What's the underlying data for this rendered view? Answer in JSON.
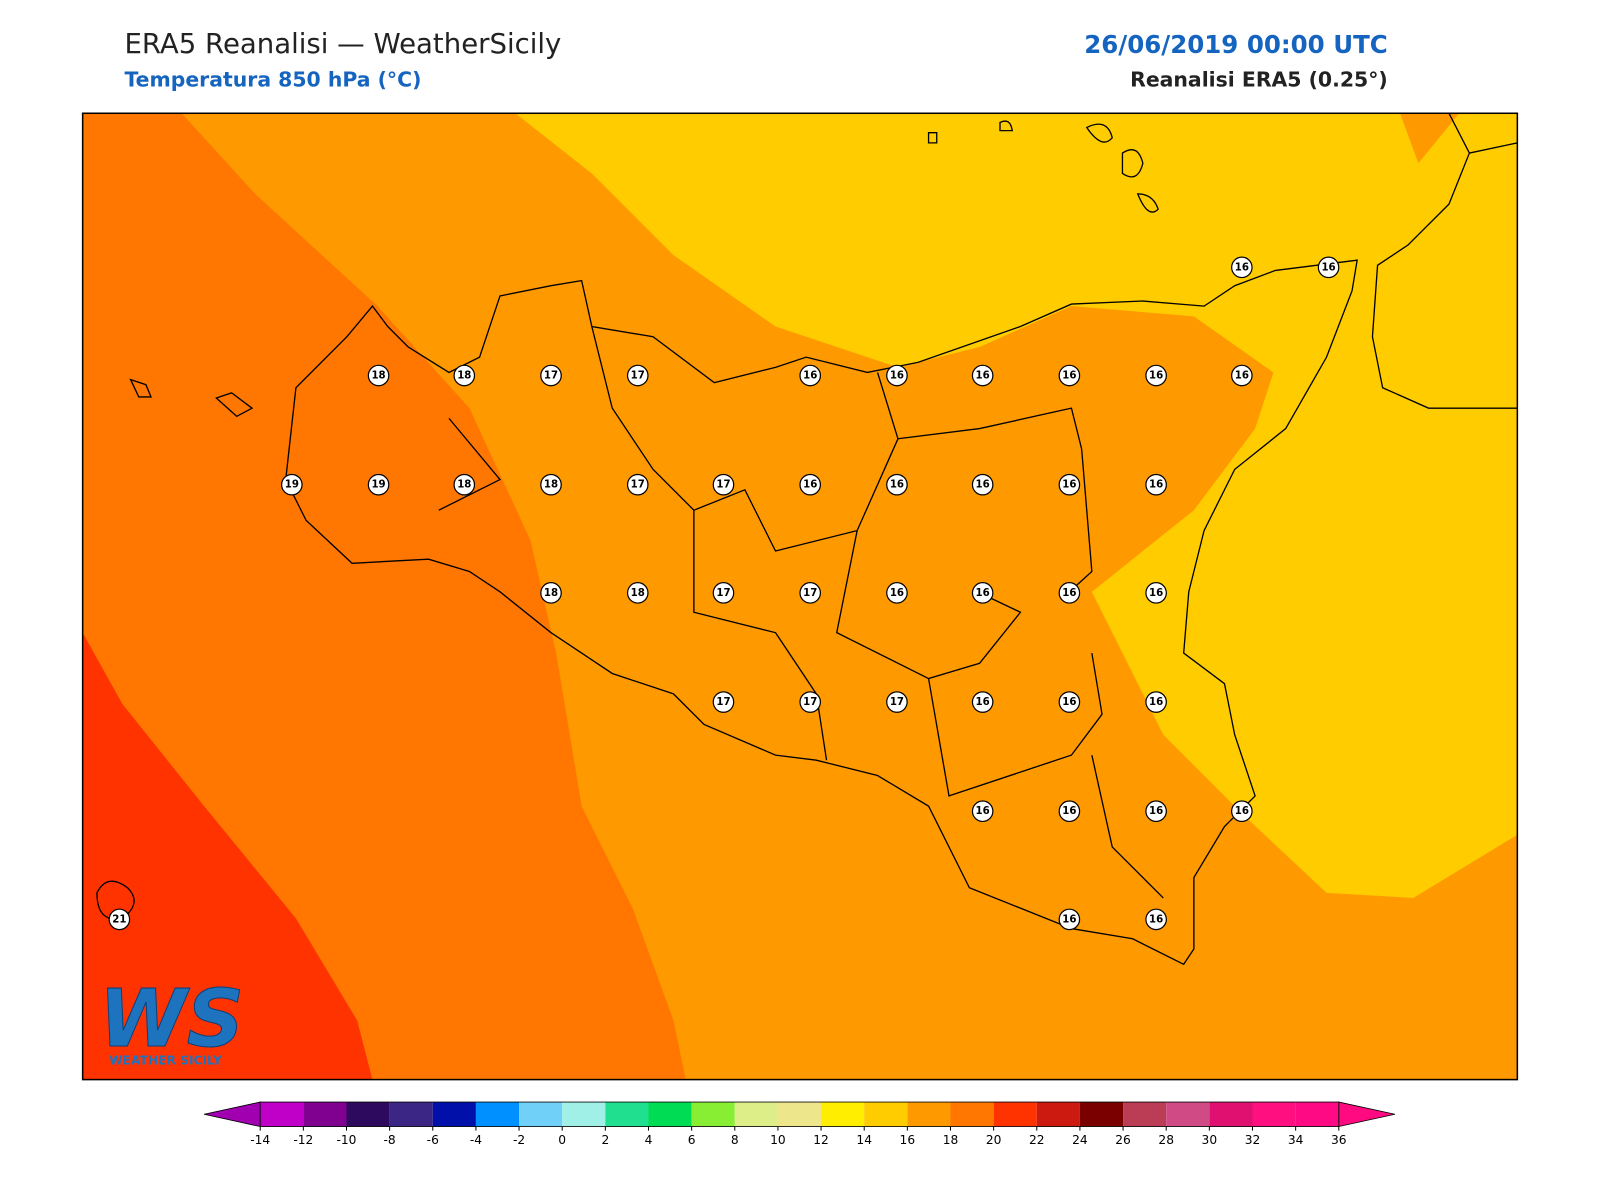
{
  "header": {
    "title": "ERA5 Reanalisi — WeatherSicily",
    "subtitle": "Temperatura 850 hPa (°C)",
    "date": "26/06/2019 00:00 UTC",
    "source": "Reanalisi ERA5 (0.25°)"
  },
  "stations": [
    18,
    18,
    17,
    17,
    16,
    16,
    16,
    16,
    16,
    16,
    19,
    19,
    18,
    18,
    17,
    17,
    16,
    16,
    16,
    16,
    16,
    18,
    18,
    17,
    17,
    16,
    16,
    16,
    16,
    17,
    17,
    17,
    16,
    16,
    16,
    16,
    16,
    16,
    16,
    16,
    16,
    21,
    16,
    16
  ],
  "colorbar": {
    "ticks": [
      -14,
      -12,
      -10,
      -8,
      -6,
      -4,
      -2,
      0,
      2,
      4,
      6,
      8,
      10,
      12,
      14,
      16,
      18,
      20,
      22,
      24,
      26,
      28,
      30,
      32,
      34,
      36
    ],
    "colors": [
      "#c000c8",
      "#800090",
      "#2e0a5e",
      "#3b2585",
      "#0010a8",
      "#0090ff",
      "#70d0f8",
      "#a0f0e8",
      "#20e090",
      "#00dd55",
      "#88ee33",
      "#ddee88",
      "#eee68a",
      "#ffee00",
      "#ffcc00",
      "#ff9900",
      "#ff7700",
      "#ff3300",
      "#cc1a10",
      "#7a0000",
      "#bb3c55",
      "#d04a85",
      "#e01070",
      "#ff0f80",
      "#ff0a85"
    ],
    "extend_colors": [
      "#a000b0",
      "#ff0a80"
    ]
  },
  "logo": {
    "text": "WS",
    "caption": "WEATHER SICILY"
  }
}
